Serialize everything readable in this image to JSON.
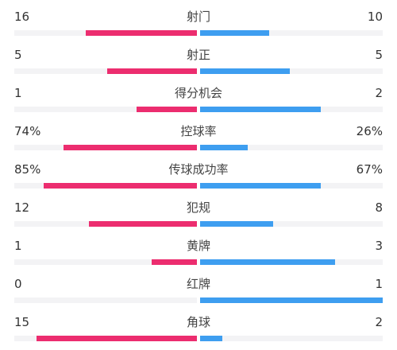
{
  "colors": {
    "home": "#ec2d6f",
    "away": "#3e9ef0",
    "track": "#f3f3f5"
  },
  "stats": [
    {
      "label": "射门",
      "home": "16",
      "away": "10",
      "home_fill": 0.61,
      "away_fill": 0.38
    },
    {
      "label": "射正",
      "home": "5",
      "away": "5",
      "home_fill": 0.49,
      "away_fill": 0.49
    },
    {
      "label": "得分机会",
      "home": "1",
      "away": "2",
      "home_fill": 0.33,
      "away_fill": 0.66
    },
    {
      "label": "控球率",
      "home": "74%",
      "away": "26%",
      "home_fill": 0.73,
      "away_fill": 0.26
    },
    {
      "label": "传球成功率",
      "home": "85%",
      "away": "67%",
      "home_fill": 0.84,
      "away_fill": 0.66
    },
    {
      "label": "犯规",
      "home": "12",
      "away": "8",
      "home_fill": 0.59,
      "away_fill": 0.4
    },
    {
      "label": "黄牌",
      "home": "1",
      "away": "3",
      "home_fill": 0.25,
      "away_fill": 0.74
    },
    {
      "label": "红牌",
      "home": "0",
      "away": "1",
      "home_fill": 0.0,
      "away_fill": 1.0
    },
    {
      "label": "角球",
      "home": "15",
      "away": "2",
      "home_fill": 0.88,
      "away_fill": 0.12
    }
  ]
}
